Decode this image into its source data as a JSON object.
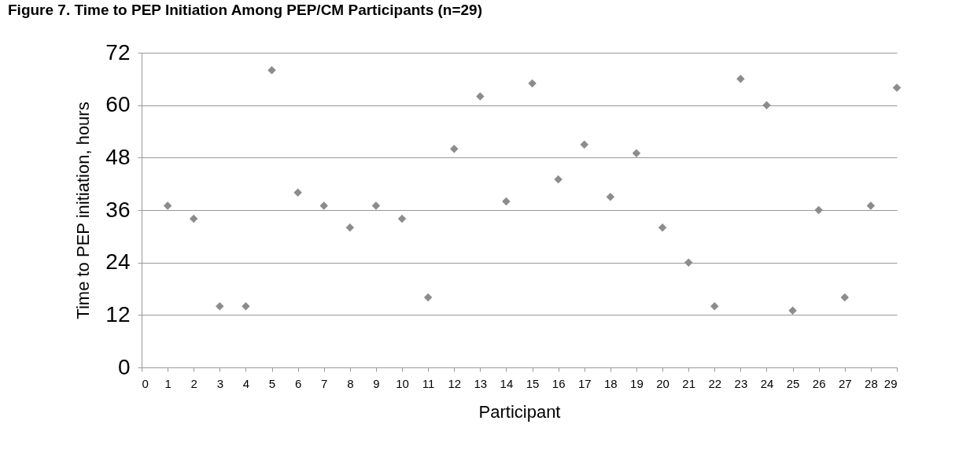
{
  "chart_data": {
    "type": "scatter",
    "title": "Figure 7. Time to PEP Initiation Among PEP/CM Participants (n=29)",
    "xlabel": "Participant",
    "ylabel": "Time to PEP initiation, hours",
    "x": [
      1,
      2,
      3,
      4,
      5,
      6,
      7,
      8,
      9,
      10,
      11,
      12,
      13,
      14,
      15,
      16,
      17,
      18,
      19,
      20,
      21,
      22,
      23,
      24,
      25,
      26,
      27,
      28,
      29
    ],
    "series": [
      {
        "color": "#8c8c8c",
        "values": [
          37,
          34,
          14,
          14,
          68,
          40,
          37,
          32,
          37,
          34,
          16,
          50,
          62,
          38,
          65,
          43,
          51,
          39,
          49,
          32,
          24,
          14,
          66,
          60,
          13,
          36,
          16,
          37,
          64
        ]
      }
    ],
    "xlim": [
      0,
      29
    ],
    "xticks": [
      0,
      1,
      2,
      3,
      4,
      5,
      6,
      7,
      8,
      9,
      10,
      11,
      12,
      13,
      14,
      15,
      16,
      17,
      18,
      19,
      20,
      21,
      22,
      23,
      24,
      25,
      26,
      27,
      28,
      29
    ],
    "ylim": [
      0,
      72
    ],
    "yticks": [
      0,
      12,
      24,
      36,
      48,
      60,
      72
    ],
    "grid": "y",
    "marker": "diamond"
  }
}
